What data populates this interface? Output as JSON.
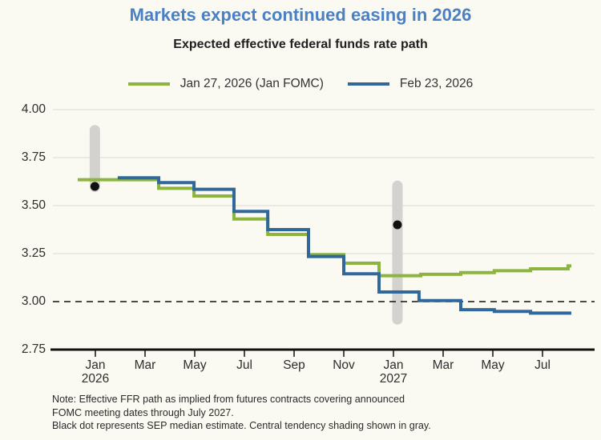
{
  "title": "Markets expect continued easing in 2026",
  "subtitle": "Expected effective federal funds rate path",
  "legend": [
    {
      "label": "Jan 27, 2026 (Jan FOMC)",
      "color": "#8cb43f"
    },
    {
      "label": "Feb 23, 2026",
      "color": "#30689b"
    }
  ],
  "note": {
    "lines": [
      "Note: Effective FFR path as implied from futures contracts covering announced",
      "FOMC meeting dates through July 2027.",
      "Black dot represents SEP median estimate. Central tendency shading shown in gray."
    ]
  },
  "colors": {
    "background": "#faf9f2",
    "title_blue": "#4a80c4",
    "series_green": "#8cb43f",
    "series_blue": "#30689b",
    "gridline": "#e3e0d8",
    "central_tendency_gray": "#d3d2cf",
    "ink": "#111111"
  },
  "chart_data": {
    "type": "line",
    "step_mode": "step-after",
    "title": "Markets expect continued easing in 2026",
    "subtitle": "Expected effective federal funds rate path",
    "ylabel": "",
    "xlabel": "",
    "ylim": [
      2.75,
      4.0
    ],
    "grid": "horizontal-only",
    "legend_position": "top-center",
    "yticks": [
      {
        "value": 4.0,
        "label": "4.00"
      },
      {
        "value": 3.75,
        "label": "3.75"
      },
      {
        "value": 3.5,
        "label": "3.50"
      },
      {
        "value": 3.25,
        "label": "3.25"
      },
      {
        "value": 3.0,
        "label": "3.00"
      },
      {
        "value": 2.75,
        "label": "2.75"
      }
    ],
    "xticks": [
      {
        "m": 0,
        "label": "Jan",
        "sublabel": "2026"
      },
      {
        "m": 2,
        "label": "Mar",
        "sublabel": ""
      },
      {
        "m": 4,
        "label": "May",
        "sublabel": ""
      },
      {
        "m": 6,
        "label": "Jul",
        "sublabel": ""
      },
      {
        "m": 8,
        "label": "Sep",
        "sublabel": ""
      },
      {
        "m": 10,
        "label": "Nov",
        "sublabel": ""
      },
      {
        "m": 12,
        "label": "Jan",
        "sublabel": "2027"
      },
      {
        "m": 14,
        "label": "Mar",
        "sublabel": ""
      },
      {
        "m": 16,
        "label": "May",
        "sublabel": ""
      },
      {
        "m": 18,
        "label": "Jul",
        "sublabel": ""
      }
    ],
    "x_unit": "months since Jan 1, 2026",
    "end_m": 19.16,
    "dashed_reference_value": 3.0,
    "series": [
      {
        "name": "Jan 27, 2026 (Jan FOMC)",
        "color": "#8cb43f",
        "points": [
          [
            -0.71,
            3.635
          ],
          [
            2.55,
            3.59
          ],
          [
            3.97,
            3.55
          ],
          [
            5.58,
            3.43
          ],
          [
            6.94,
            3.35
          ],
          [
            8.58,
            3.245
          ],
          [
            10.0,
            3.2
          ],
          [
            11.42,
            3.135
          ],
          [
            13.1,
            3.142
          ],
          [
            14.71,
            3.151
          ],
          [
            16.06,
            3.161
          ],
          [
            17.52,
            3.171
          ],
          [
            19.03,
            3.186
          ]
        ]
      },
      {
        "name": "Feb 23, 2026",
        "color": "#30689b",
        "points": [
          [
            0.9,
            3.645
          ],
          [
            2.55,
            3.62
          ],
          [
            3.97,
            3.585
          ],
          [
            5.58,
            3.47
          ],
          [
            6.94,
            3.375
          ],
          [
            8.58,
            3.235
          ],
          [
            10.0,
            3.145
          ],
          [
            11.42,
            3.05
          ],
          [
            13.03,
            3.005
          ],
          [
            14.71,
            2.958
          ],
          [
            16.06,
            2.949
          ],
          [
            17.52,
            2.94
          ]
        ]
      }
    ],
    "sep_markers": [
      {
        "x_m": -0.02,
        "dot_value": 3.6,
        "band_top": 3.92,
        "band_bottom": 3.57
      },
      {
        "x_m": 12.16,
        "dot_value": 3.4,
        "band_top": 3.63,
        "band_bottom": 2.88
      }
    ]
  }
}
